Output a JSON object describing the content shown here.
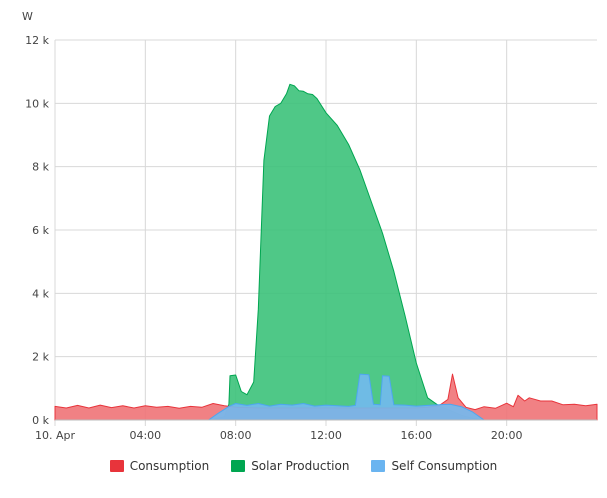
{
  "chart_data": {
    "type": "area",
    "ylabel": "W",
    "yticks": [
      "0 k",
      "2 k",
      "4 k",
      "6 k",
      "8 k",
      "10 k",
      "12 k"
    ],
    "ylim": [
      0,
      12000
    ],
    "xlim": [
      0,
      24
    ],
    "xticks": [
      {
        "t": 0,
        "label": "10. Apr"
      },
      {
        "t": 4,
        "label": "04:00"
      },
      {
        "t": 8,
        "label": "08:00"
      },
      {
        "t": 12,
        "label": "12:00"
      },
      {
        "t": 16,
        "label": "16:00"
      },
      {
        "t": 20,
        "label": "20:00"
      }
    ],
    "grid": true,
    "legend_position": "bottom",
    "series": [
      {
        "name": "Solar Production",
        "color": "#00a651",
        "fill": "#3cc27a",
        "points": [
          [
            6.8,
            0
          ],
          [
            7.5,
            100
          ],
          [
            7.7,
            500
          ],
          [
            7.75,
            1400
          ],
          [
            8.0,
            1420
          ],
          [
            8.25,
            900
          ],
          [
            8.5,
            800
          ],
          [
            8.8,
            1200
          ],
          [
            9.0,
            3500
          ],
          [
            9.25,
            8200
          ],
          [
            9.5,
            9600
          ],
          [
            9.75,
            9900
          ],
          [
            10.0,
            10000
          ],
          [
            10.25,
            10300
          ],
          [
            10.4,
            10600
          ],
          [
            10.6,
            10550
          ],
          [
            10.8,
            10400
          ],
          [
            11.0,
            10380
          ],
          [
            11.2,
            10300
          ],
          [
            11.4,
            10280
          ],
          [
            11.6,
            10150
          ],
          [
            12.0,
            9700
          ],
          [
            12.5,
            9300
          ],
          [
            13.0,
            8700
          ],
          [
            13.5,
            7900
          ],
          [
            14.0,
            6900
          ],
          [
            14.5,
            5900
          ],
          [
            15.0,
            4700
          ],
          [
            15.5,
            3300
          ],
          [
            16.0,
            1800
          ],
          [
            16.5,
            700
          ],
          [
            17.0,
            450
          ],
          [
            17.5,
            300
          ],
          [
            18.0,
            150
          ],
          [
            18.5,
            50
          ],
          [
            19.0,
            0
          ]
        ]
      },
      {
        "name": "Consumption",
        "color": "#e8343b",
        "fill": "#f07377",
        "points": [
          [
            0,
            430
          ],
          [
            0.5,
            380
          ],
          [
            1.0,
            460
          ],
          [
            1.5,
            380
          ],
          [
            2.0,
            470
          ],
          [
            2.5,
            390
          ],
          [
            3.0,
            450
          ],
          [
            3.5,
            380
          ],
          [
            4.0,
            450
          ],
          [
            4.5,
            400
          ],
          [
            5.0,
            430
          ],
          [
            5.5,
            370
          ],
          [
            6.0,
            430
          ],
          [
            6.5,
            400
          ],
          [
            7.0,
            520
          ],
          [
            7.5,
            450
          ],
          [
            8.0,
            400
          ],
          [
            9.0,
            380
          ],
          [
            10.0,
            380
          ],
          [
            11.0,
            380
          ],
          [
            12.0,
            380
          ],
          [
            13.0,
            380
          ],
          [
            14.0,
            380
          ],
          [
            15.0,
            380
          ],
          [
            16.0,
            380
          ],
          [
            16.5,
            400
          ],
          [
            17.0,
            450
          ],
          [
            17.4,
            650
          ],
          [
            17.6,
            1450
          ],
          [
            17.85,
            700
          ],
          [
            18.2,
            400
          ],
          [
            18.6,
            330
          ],
          [
            19.0,
            420
          ],
          [
            19.5,
            370
          ],
          [
            20.0,
            530
          ],
          [
            20.3,
            420
          ],
          [
            20.5,
            780
          ],
          [
            20.8,
            600
          ],
          [
            21.0,
            700
          ],
          [
            21.5,
            600
          ],
          [
            22.0,
            600
          ],
          [
            22.5,
            480
          ],
          [
            23.0,
            500
          ],
          [
            23.5,
            450
          ],
          [
            24.0,
            500
          ]
        ]
      },
      {
        "name": "Self Consumption",
        "color": "#4da6f0",
        "fill": "#72b9f0",
        "points": [
          [
            6.8,
            0
          ],
          [
            7.2,
            200
          ],
          [
            7.7,
            430
          ],
          [
            8.0,
            520
          ],
          [
            8.5,
            460
          ],
          [
            9.0,
            520
          ],
          [
            9.5,
            440
          ],
          [
            10.0,
            500
          ],
          [
            10.5,
            470
          ],
          [
            11.0,
            520
          ],
          [
            11.5,
            440
          ],
          [
            12.0,
            470
          ],
          [
            12.5,
            450
          ],
          [
            13.0,
            430
          ],
          [
            13.3,
            460
          ],
          [
            13.5,
            1450
          ],
          [
            13.9,
            1430
          ],
          [
            14.1,
            500
          ],
          [
            14.4,
            480
          ],
          [
            14.5,
            1400
          ],
          [
            14.8,
            1380
          ],
          [
            15.0,
            480
          ],
          [
            15.5,
            470
          ],
          [
            16.0,
            440
          ],
          [
            16.5,
            460
          ],
          [
            17.0,
            480
          ],
          [
            17.5,
            500
          ],
          [
            18.0,
            420
          ],
          [
            18.5,
            250
          ],
          [
            19.0,
            0
          ]
        ]
      }
    ]
  },
  "legend": [
    {
      "label": "Consumption",
      "color": "#e8343b",
      "name": "legend-item-consumption"
    },
    {
      "label": "Solar Production",
      "color": "#00a651",
      "name": "legend-item-solar-production"
    },
    {
      "label": "Self Consumption",
      "color": "#6ab4f0",
      "name": "legend-item-self-consumption"
    }
  ]
}
